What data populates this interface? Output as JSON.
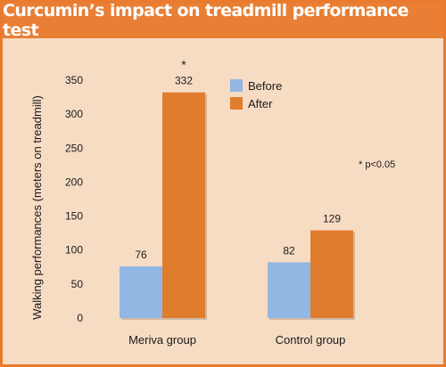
{
  "chart_data": {
    "type": "bar",
    "title": "Curcumin’s impact on treadmill performance test",
    "xlabel": "",
    "ylabel": "Walking performances (meters on treadmill)",
    "categories": [
      "Meriva group",
      "Control group"
    ],
    "series": [
      {
        "name": "Before",
        "values": [
          76,
          82
        ],
        "color": "#92b7e3"
      },
      {
        "name": "After",
        "values": [
          332,
          129
        ],
        "color": "#e07c2e"
      }
    ],
    "data_labels": [
      [
        "76",
        "82"
      ],
      [
        "332",
        "129"
      ]
    ],
    "significance": [
      {
        "category": "Meriva group",
        "series": "After",
        "mark": "*"
      }
    ],
    "annotation": "* p<0.05",
    "yticks": [
      0,
      50,
      100,
      150,
      200,
      250,
      300,
      350
    ],
    "ylim": [
      0,
      350
    ],
    "grid": false,
    "legend": "top-center",
    "background": "#f7dcc4",
    "accent": "#e87f34"
  }
}
